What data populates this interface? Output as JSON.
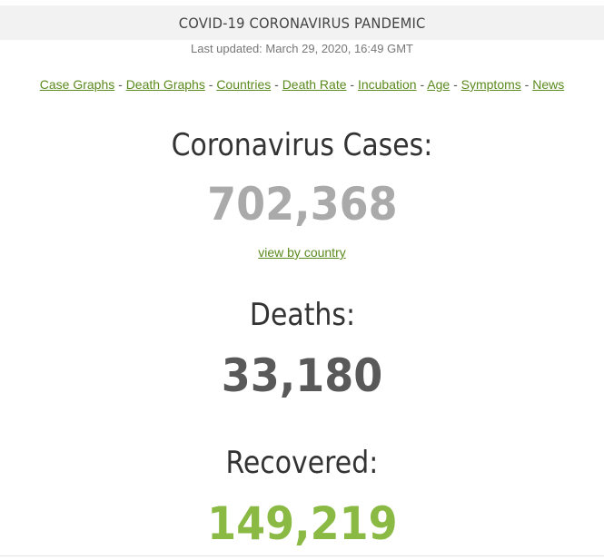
{
  "header": {
    "title": "COVID-19 CORONAVIRUS PANDEMIC",
    "last_updated": "Last updated: March 29, 2020, 16:49 GMT"
  },
  "nav": {
    "separator": "-",
    "links": [
      "Case Graphs",
      "Death Graphs",
      "Countries",
      "Death Rate",
      "Incubation",
      "Age",
      "Symptoms",
      "News"
    ]
  },
  "cases": {
    "label": "Coronavirus Cases:",
    "value": "702,368",
    "link": "view by country"
  },
  "deaths": {
    "label": "Deaths:",
    "value": "33,180"
  },
  "recovered": {
    "label": "Recovered:",
    "value": "149,219"
  },
  "colors": {
    "cases": "#aaaaaa",
    "deaths": "#595959",
    "recovered": "#8aba44",
    "link": "#5b8a1e"
  }
}
